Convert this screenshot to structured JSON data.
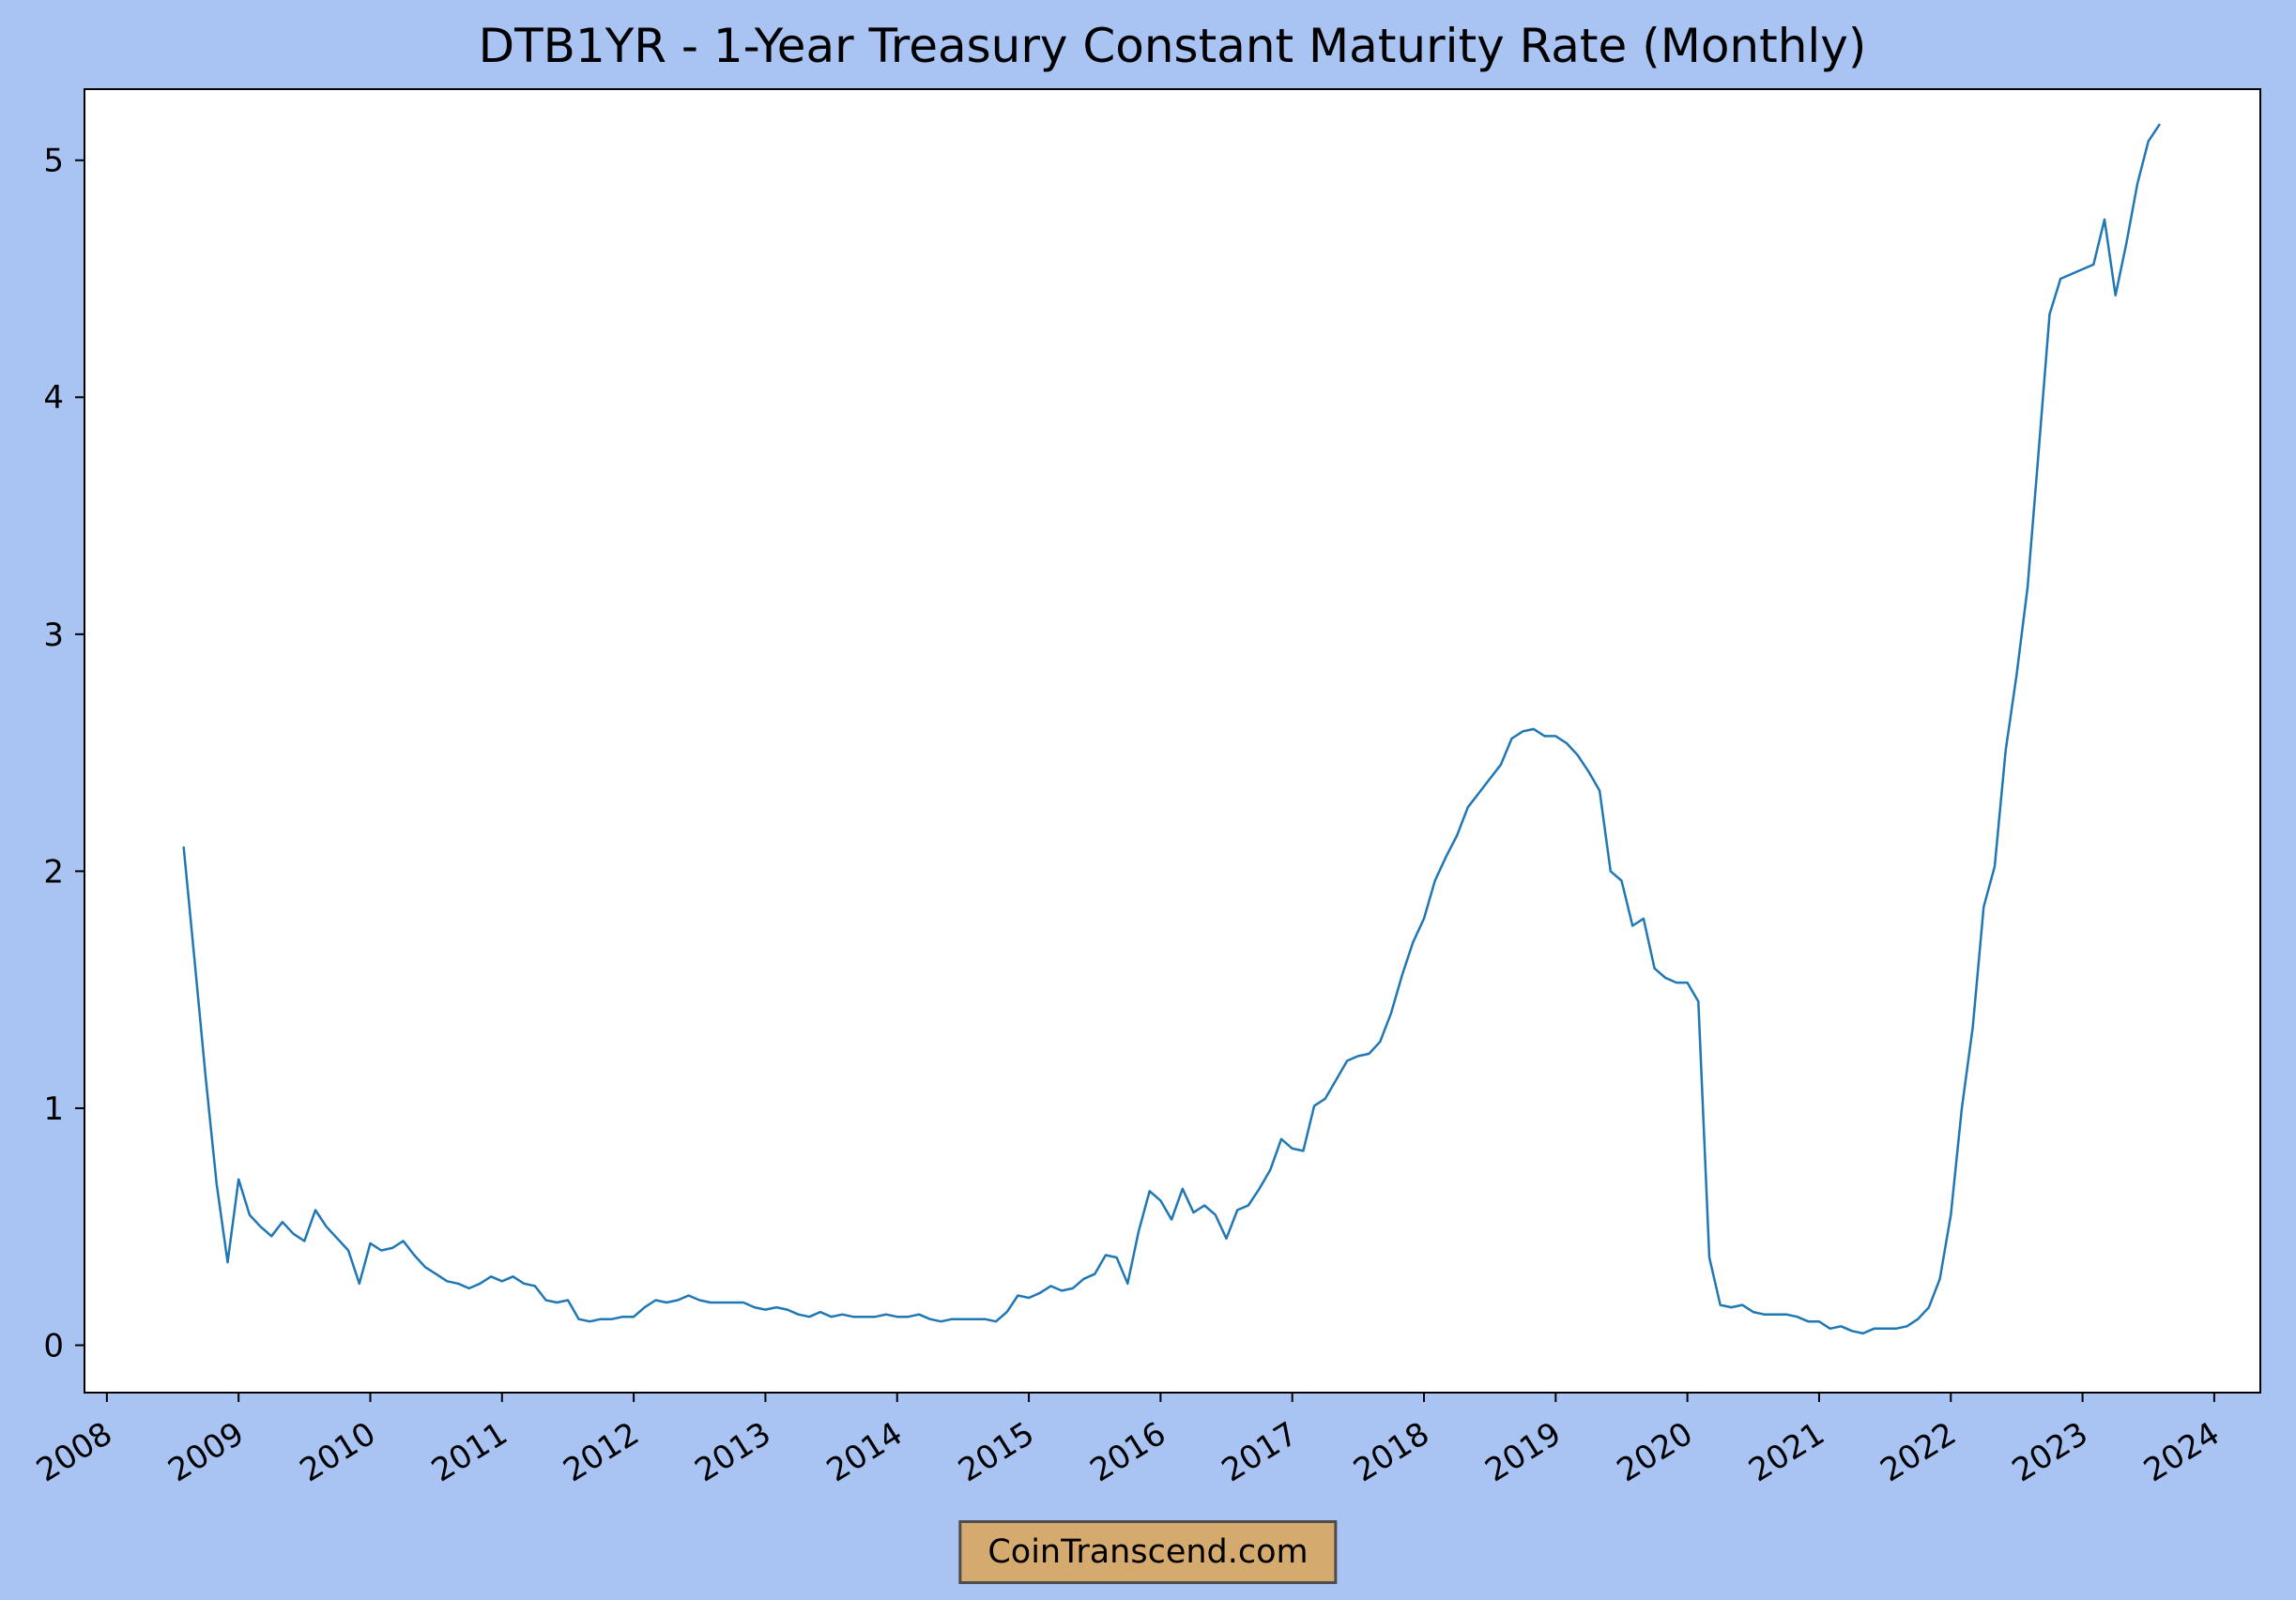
{
  "title": "DTB1YR - 1-Year Treasury Constant Maturity Rate (Monthly)",
  "watermark": "CoinTranscend.com",
  "colors": {
    "background": "#a9c4f3",
    "plot_background": "#ffffff",
    "line": "#1f77b4",
    "axis": "#000000",
    "text": "#000000",
    "watermark_background": "#d4aa6e",
    "watermark_border": "#4d4d4d"
  },
  "chart_data": {
    "type": "line",
    "title": "DTB1YR - 1-Year Treasury Constant Maturity Rate (Monthly)",
    "xlabel": "",
    "ylabel": "",
    "series_name": "DTB1YR",
    "frequency": "monthly",
    "start_year": 2008,
    "start_month": 8,
    "values": [
      2.1,
      1.62,
      1.13,
      0.68,
      0.35,
      0.7,
      0.55,
      0.5,
      0.46,
      0.52,
      0.47,
      0.44,
      0.57,
      0.5,
      0.45,
      0.4,
      0.26,
      0.43,
      0.4,
      0.41,
      0.44,
      0.38,
      0.33,
      0.3,
      0.27,
      0.26,
      0.24,
      0.26,
      0.29,
      0.27,
      0.29,
      0.26,
      0.25,
      0.19,
      0.18,
      0.19,
      0.11,
      0.1,
      0.11,
      0.11,
      0.12,
      0.12,
      0.16,
      0.19,
      0.18,
      0.19,
      0.21,
      0.19,
      0.18,
      0.18,
      0.18,
      0.18,
      0.16,
      0.15,
      0.16,
      0.15,
      0.13,
      0.12,
      0.14,
      0.12,
      0.13,
      0.12,
      0.12,
      0.12,
      0.13,
      0.12,
      0.12,
      0.13,
      0.11,
      0.1,
      0.11,
      0.11,
      0.11,
      0.11,
      0.1,
      0.14,
      0.21,
      0.2,
      0.22,
      0.25,
      0.23,
      0.24,
      0.28,
      0.3,
      0.38,
      0.37,
      0.26,
      0.48,
      0.65,
      0.61,
      0.53,
      0.66,
      0.56,
      0.59,
      0.55,
      0.45,
      0.57,
      0.59,
      0.66,
      0.74,
      0.87,
      0.83,
      0.82,
      1.01,
      1.04,
      1.12,
      1.2,
      1.22,
      1.23,
      1.28,
      1.4,
      1.56,
      1.7,
      1.8,
      1.96,
      2.06,
      2.15,
      2.27,
      2.33,
      2.39,
      2.45,
      2.56,
      2.59,
      2.6,
      2.57,
      2.57,
      2.54,
      2.49,
      2.42,
      2.34,
      2.0,
      1.96,
      1.77,
      1.8,
      1.59,
      1.55,
      1.53,
      1.53,
      1.45,
      0.37,
      0.17,
      0.16,
      0.17,
      0.14,
      0.13,
      0.13,
      0.13,
      0.12,
      0.1,
      0.1,
      0.07,
      0.08,
      0.06,
      0.05,
      0.07,
      0.07,
      0.07,
      0.08,
      0.11,
      0.16,
      0.28,
      0.55,
      1.0,
      1.34,
      1.85,
      2.02,
      2.51,
      2.83,
      3.2,
      3.77,
      4.35,
      4.5,
      4.52,
      4.54,
      4.56,
      4.75,
      4.43,
      4.65,
      4.9,
      5.08,
      5.15
    ],
    "x_ticks": [
      2008,
      2009,
      2010,
      2011,
      2012,
      2013,
      2014,
      2015,
      2016,
      2017,
      2018,
      2019,
      2020,
      2021,
      2022,
      2023,
      2024
    ],
    "y_ticks": [
      0,
      1,
      2,
      3,
      4,
      5
    ],
    "xlim": [
      2007.83,
      2024.35
    ],
    "ylim": [
      -0.2,
      5.3
    ],
    "grid": false,
    "legend": "none"
  }
}
